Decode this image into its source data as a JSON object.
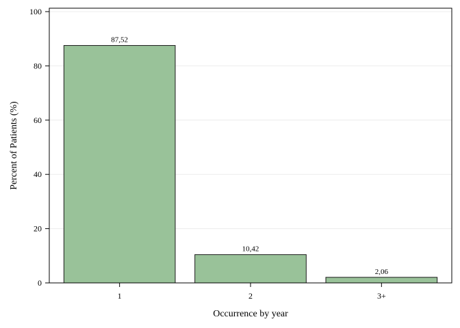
{
  "chart_data": {
    "type": "bar",
    "categories": [
      "1",
      "2",
      "3+"
    ],
    "values": [
      87.52,
      10.42,
      2.06
    ],
    "data_labels": [
      "87,52",
      "10,42",
      "2,06"
    ],
    "xlabel": "Occurrence by year",
    "ylabel": "Percent of Patients (%)",
    "ylim": [
      0,
      100
    ],
    "yticks": [
      "0",
      "20",
      "40",
      "60",
      "80",
      "100"
    ],
    "grid": true,
    "bar_color": "#99c299",
    "bar_edge_color": "#1a1a1a"
  }
}
